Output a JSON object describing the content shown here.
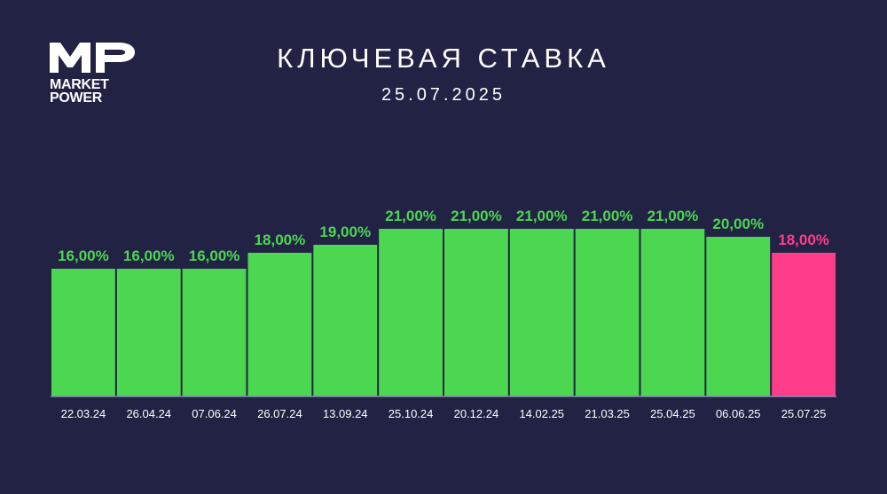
{
  "logo": {
    "mark": "MP",
    "line1": "MARKET",
    "line2": "POWER"
  },
  "title": "КЛЮЧЕВАЯ СТАВКА",
  "subtitle": "25.07.2025",
  "colors": {
    "background": "#222245",
    "bar": "#4cd750",
    "highlight": "#ff3d8b",
    "text": "#ffffff"
  },
  "chart_data": {
    "type": "bar",
    "categories": [
      "22.03.24",
      "26.04.24",
      "07.06.24",
      "26.07.24",
      "13.09.24",
      "25.10.24",
      "20.12.24",
      "14.02.25",
      "21.03.25",
      "25.04.25",
      "06.06.25",
      "25.07.25"
    ],
    "values": [
      16,
      16,
      16,
      18,
      19,
      21,
      21,
      21,
      21,
      21,
      20,
      18
    ],
    "labels": [
      "16,00%",
      "16,00%",
      "16,00%",
      "18,00%",
      "19,00%",
      "21,00%",
      "21,00%",
      "21,00%",
      "21,00%",
      "21,00%",
      "20,00%",
      "18,00%"
    ],
    "highlight_index": 11,
    "xlabel": "",
    "ylabel": "",
    "ylim": [
      0,
      21
    ],
    "grid": false,
    "legend": "none"
  }
}
